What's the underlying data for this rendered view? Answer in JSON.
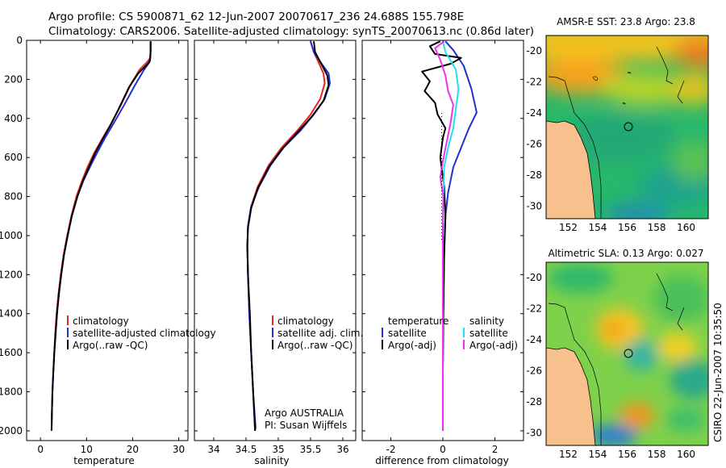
{
  "header": {
    "title_line1": "Argo profile: CS 5900871_62 12-Jun-2007 20070617_236 24.688S 155.798E",
    "title_line2": "Climatology: CARS2006. Satellite-adjusted climatology: synTS_20070613.nc (0.86d later)"
  },
  "side_label": "CSIRO  22-Jun-2007 10:35:50",
  "colors": {
    "climatology": "#ee2222",
    "satellite": "#1f2fd6",
    "argo": "#000000",
    "sal_satellite": "#22e0ee",
    "sal_argo": "#ee33ee",
    "land": "#f7c08c"
  },
  "chart_data": [
    {
      "id": "temperature",
      "type": "line",
      "xlabel": "temperature",
      "ylabel": "",
      "xlim": [
        -3,
        32
      ],
      "ylim": [
        2050,
        0
      ],
      "xticks": [
        0,
        10,
        20,
        30
      ],
      "yticks": [
        0,
        200,
        400,
        600,
        800,
        1000,
        1200,
        1400,
        1600,
        1800,
        2000
      ],
      "legend": [
        "climatology",
        "satellite-adjusted climatology",
        "Argo(..raw -QC)"
      ],
      "series": [
        {
          "name": "climatology",
          "color": "#ee2222",
          "points": [
            [
              23.9,
              5
            ],
            [
              23.9,
              50
            ],
            [
              23.8,
              90
            ],
            [
              23.2,
              110
            ],
            [
              21.5,
              150
            ],
            [
              19.5,
              230
            ],
            [
              17.5,
              330
            ],
            [
              15.5,
              420
            ],
            [
              13.5,
              500
            ],
            [
              11.6,
              580
            ],
            [
              10.2,
              650
            ],
            [
              9.0,
              720
            ],
            [
              7.8,
              800
            ],
            [
              6.7,
              900
            ],
            [
              5.8,
              1000
            ],
            [
              5.0,
              1100
            ],
            [
              4.4,
              1200
            ],
            [
              3.9,
              1300
            ],
            [
              3.5,
              1400
            ],
            [
              3.2,
              1500
            ],
            [
              3.0,
              1600
            ],
            [
              2.8,
              1700
            ],
            [
              2.6,
              1800
            ],
            [
              2.5,
              1900
            ],
            [
              2.4,
              1990
            ]
          ]
        },
        {
          "name": "satellite",
          "color": "#1f2fd6",
          "points": [
            [
              23.9,
              5
            ],
            [
              23.9,
              50
            ],
            [
              23.8,
              90
            ],
            [
              23.7,
              110
            ],
            [
              22.5,
              150
            ],
            [
              20.5,
              230
            ],
            [
              18.2,
              330
            ],
            [
              16.0,
              420
            ],
            [
              14.0,
              500
            ],
            [
              12.2,
              580
            ],
            [
              10.7,
              650
            ],
            [
              9.3,
              720
            ],
            [
              8.0,
              800
            ],
            [
              6.8,
              900
            ],
            [
              5.9,
              1000
            ],
            [
              5.1,
              1100
            ],
            [
              4.5,
              1200
            ],
            [
              4.0,
              1300
            ],
            [
              3.6,
              1400
            ],
            [
              3.3,
              1500
            ],
            [
              3.0,
              1600
            ],
            [
              2.8,
              1700
            ],
            [
              2.6,
              1800
            ],
            [
              2.5,
              1900
            ],
            [
              2.4,
              1990
            ]
          ]
        },
        {
          "name": "Argo",
          "color": "#000000",
          "points": [
            [
              23.9,
              5
            ],
            [
              23.9,
              60
            ],
            [
              23.8,
              100
            ],
            [
              23.5,
              115
            ],
            [
              21.2,
              170
            ],
            [
              19.2,
              240
            ],
            [
              17.2,
              340
            ],
            [
              15.3,
              430
            ],
            [
              13.4,
              510
            ],
            [
              11.8,
              580
            ],
            [
              10.5,
              650
            ],
            [
              9.2,
              720
            ],
            [
              8.0,
              800
            ],
            [
              6.8,
              900
            ],
            [
              5.9,
              1000
            ],
            [
              5.1,
              1100
            ],
            [
              4.5,
              1200
            ],
            [
              4.0,
              1300
            ],
            [
              3.6,
              1400
            ],
            [
              3.3,
              1500
            ],
            [
              3.0,
              1600
            ],
            [
              2.8,
              1700
            ],
            [
              2.6,
              1800
            ],
            [
              2.5,
              1900
            ],
            [
              2.4,
              2000
            ]
          ]
        }
      ]
    },
    {
      "id": "salinity",
      "type": "line",
      "xlabel": "salinity",
      "ylabel": "",
      "xlim": [
        33.7,
        36.2
      ],
      "ylim": [
        2050,
        0
      ],
      "xticks": [
        34,
        34.5,
        35,
        35.5,
        36
      ],
      "yticks": [
        0,
        200,
        400,
        600,
        800,
        1000,
        1200,
        1400,
        1600,
        1800,
        2000
      ],
      "legend": [
        "climatology",
        "satellite adj. clim.",
        "Argo(..raw -QC)"
      ],
      "annotations": [
        "Argo AUSTRALIA",
        "PI: Susan Wijffels"
      ],
      "series": [
        {
          "name": "climatology",
          "color": "#ee2222",
          "points": [
            [
              35.5,
              5
            ],
            [
              35.55,
              60
            ],
            [
              35.62,
              110
            ],
            [
              35.7,
              170
            ],
            [
              35.72,
              220
            ],
            [
              35.65,
              300
            ],
            [
              35.5,
              380
            ],
            [
              35.3,
              460
            ],
            [
              35.05,
              550
            ],
            [
              34.85,
              640
            ],
            [
              34.68,
              750
            ],
            [
              34.58,
              850
            ],
            [
              34.53,
              950
            ],
            [
              34.52,
              1050
            ],
            [
              34.53,
              1200
            ],
            [
              34.55,
              1400
            ],
            [
              34.58,
              1600
            ],
            [
              34.61,
              1800
            ],
            [
              34.64,
              2000
            ]
          ]
        },
        {
          "name": "satellite",
          "color": "#1f2fd6",
          "points": [
            [
              35.5,
              5
            ],
            [
              35.55,
              60
            ],
            [
              35.65,
              110
            ],
            [
              35.78,
              170
            ],
            [
              35.8,
              220
            ],
            [
              35.72,
              300
            ],
            [
              35.55,
              380
            ],
            [
              35.35,
              460
            ],
            [
              35.08,
              550
            ],
            [
              34.88,
              640
            ],
            [
              34.7,
              750
            ],
            [
              34.58,
              850
            ],
            [
              34.53,
              950
            ],
            [
              34.52,
              1050
            ],
            [
              34.53,
              1200
            ],
            [
              34.55,
              1400
            ],
            [
              34.58,
              1600
            ],
            [
              34.61,
              1800
            ],
            [
              34.65,
              1990
            ]
          ]
        },
        {
          "name": "Argo",
          "color": "#000000",
          "points": [
            [
              35.55,
              5
            ],
            [
              35.57,
              60
            ],
            [
              35.65,
              110
            ],
            [
              35.76,
              180
            ],
            [
              35.78,
              230
            ],
            [
              35.7,
              310
            ],
            [
              35.52,
              390
            ],
            [
              35.3,
              470
            ],
            [
              35.05,
              560
            ],
            [
              34.85,
              650
            ],
            [
              34.68,
              760
            ],
            [
              34.58,
              860
            ],
            [
              34.53,
              960
            ],
            [
              34.52,
              1060
            ],
            [
              34.53,
              1200
            ],
            [
              34.56,
              1400
            ],
            [
              34.58,
              1600
            ],
            [
              34.61,
              1800
            ],
            [
              34.64,
              2000
            ]
          ]
        }
      ]
    },
    {
      "id": "difference",
      "type": "line",
      "xlabel": "difference from climatology",
      "ylabel": "",
      "xlim": [
        -3.1,
        3.1
      ],
      "ylim": [
        2050,
        0
      ],
      "xticks": [
        -2,
        0,
        2
      ],
      "yticks": [
        0,
        200,
        400,
        600,
        800,
        1000,
        1200,
        1400,
        1600,
        1800,
        2000
      ],
      "legend": [
        "temperature",
        "satellite",
        "Argo(-adj)",
        "salinity",
        "satellite",
        "Argo(-adj)"
      ],
      "series": [
        {
          "name": "temperature satellite",
          "color": "#1f2fd6",
          "points": [
            [
              0.1,
              5
            ],
            [
              0.4,
              50
            ],
            [
              0.8,
              130
            ],
            [
              1.1,
              250
            ],
            [
              1.3,
              370
            ],
            [
              1.0,
              450
            ],
            [
              0.7,
              550
            ],
            [
              0.4,
              650
            ],
            [
              0.2,
              780
            ],
            [
              0.1,
              900
            ],
            [
              0.05,
              1100
            ],
            [
              0.02,
              1400
            ],
            [
              0,
              1700
            ],
            [
              0,
              1990
            ]
          ]
        },
        {
          "name": "temperature Argo",
          "color": "#000000",
          "points": [
            [
              -0.1,
              5
            ],
            [
              -0.5,
              30
            ],
            [
              -0.3,
              70
            ],
            [
              0.7,
              90
            ],
            [
              0.3,
              120
            ],
            [
              -0.8,
              160
            ],
            [
              -0.5,
              210
            ],
            [
              -0.7,
              260
            ],
            [
              -0.3,
              320
            ],
            [
              -0.2,
              380
            ],
            [
              0.1,
              450
            ],
            [
              0.0,
              500
            ],
            [
              -0.1,
              600
            ],
            [
              0.05,
              750
            ],
            [
              0.1,
              900
            ],
            [
              0.05,
              1100
            ],
            [
              0.02,
              1400
            ],
            [
              0,
              1700
            ],
            [
              0,
              2000
            ]
          ]
        },
        {
          "name": "salinity satellite",
          "color": "#22e0ee",
          "points": [
            [
              0,
              5
            ],
            [
              0.1,
              60
            ],
            [
              0.5,
              150
            ],
            [
              0.6,
              250
            ],
            [
              0.5,
              350
            ],
            [
              0.4,
              450
            ],
            [
              0.2,
              550
            ],
            [
              0.05,
              650
            ],
            [
              0.02,
              800
            ],
            [
              0,
              1000
            ],
            [
              0,
              1300
            ],
            [
              0,
              1700
            ],
            [
              0,
              1990
            ]
          ]
        },
        {
          "name": "salinity Argo",
          "color": "#ee33ee",
          "points": [
            [
              0.05,
              5
            ],
            [
              -0.3,
              40
            ],
            [
              -0.1,
              100
            ],
            [
              0.1,
              180
            ],
            [
              0.2,
              260
            ],
            [
              0.4,
              330
            ],
            [
              0.3,
              420
            ],
            [
              0.15,
              520
            ],
            [
              0,
              620
            ],
            [
              -0.1,
              700
            ],
            [
              0.02,
              800
            ],
            [
              0,
              1000
            ],
            [
              0,
              1300
            ],
            [
              0,
              1700
            ],
            [
              0,
              2000
            ]
          ]
        }
      ]
    },
    {
      "id": "sst-map",
      "type": "heatmap",
      "title": "AMSR-E SST: 23.8 Argo: 23.8",
      "xlim": [
        150.5,
        161.5
      ],
      "ylim": [
        -30.8,
        -19
      ],
      "xticks": [
        152,
        154,
        156,
        158,
        160
      ],
      "yticks": [
        -20,
        -22,
        -24,
        -26,
        -28,
        -30
      ]
    },
    {
      "id": "sla-map",
      "type": "heatmap",
      "title": "Altimetric SLA: 0.13 Argo: 0.027",
      "xlim": [
        150.5,
        161.5
      ],
      "ylim": [
        -30.8,
        -19
      ],
      "xticks": [
        152,
        154,
        156,
        158,
        160
      ],
      "yticks": [
        -20,
        -22,
        -24,
        -26,
        -28,
        -30
      ]
    }
  ]
}
